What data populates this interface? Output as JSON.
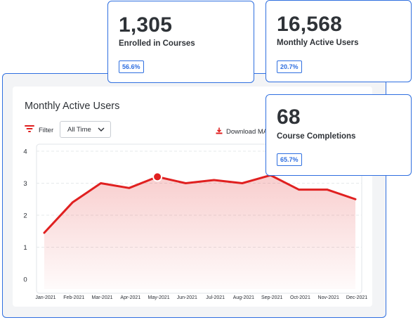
{
  "stat_cards": [
    {
      "value": "1,305",
      "label": "Enrolled in Courses",
      "badge": "56.6%"
    },
    {
      "value": "16,568",
      "label": "Monthly Active Users",
      "badge": "20.7%"
    },
    {
      "value": "68",
      "label": "Course Completions",
      "badge": "65.7%"
    }
  ],
  "panel": {
    "title": "Monthly Active Users",
    "filter_label": "Filter",
    "timeframe_value": "All Time",
    "download_label": "Download MA"
  },
  "icons": {
    "filter": "filter-lines-icon",
    "dropdown": "chevron-down-icon",
    "download": "download-icon"
  },
  "colors": {
    "accent_blue": "#2f6fe0",
    "line_red": "#e02020",
    "panel_bg": "#f3f4f6"
  },
  "chart_data": {
    "type": "area",
    "x": [
      "Jan-2021",
      "Feb-2021",
      "Mar-2021",
      "Apr-2021",
      "May-2021",
      "Jun-2021",
      "Jul-2021",
      "Aug-2021",
      "Sep-2021",
      "Oct-2021",
      "Nov-2021",
      "Dec-2021"
    ],
    "y": [
      1.45,
      2.4,
      3.0,
      2.85,
      3.2,
      3.0,
      3.1,
      3.0,
      3.25,
      2.8,
      2.8,
      2.5
    ],
    "yticks": [
      0,
      1,
      2,
      3,
      4
    ],
    "ylim": [
      0,
      4
    ],
    "highlight_index": 4,
    "grid": "horizontal dashed",
    "title": "Monthly Active Users"
  }
}
